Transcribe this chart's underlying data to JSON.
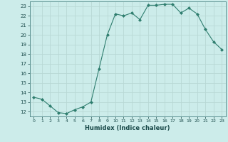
{
  "x": [
    0,
    1,
    2,
    3,
    4,
    5,
    6,
    7,
    8,
    9,
    10,
    11,
    12,
    13,
    14,
    15,
    16,
    17,
    18,
    19,
    20,
    21,
    22,
    23
  ],
  "y": [
    13.5,
    13.3,
    12.6,
    11.9,
    11.8,
    12.2,
    12.5,
    13.0,
    16.5,
    20.0,
    22.2,
    22.0,
    22.3,
    21.6,
    23.1,
    23.1,
    23.2,
    23.2,
    22.3,
    22.8,
    22.2,
    20.6,
    19.3,
    18.5
  ],
  "ylim": [
    11.5,
    23.5
  ],
  "xlim": [
    -0.5,
    23.5
  ],
  "yticks": [
    12,
    13,
    14,
    15,
    16,
    17,
    18,
    19,
    20,
    21,
    22,
    23
  ],
  "xticks": [
    0,
    1,
    2,
    3,
    4,
    5,
    6,
    7,
    8,
    9,
    10,
    11,
    12,
    13,
    14,
    15,
    16,
    17,
    18,
    19,
    20,
    21,
    22,
    23
  ],
  "xlabel": "Humidex (Indice chaleur)",
  "line_color": "#2e7d6e",
  "marker": "D",
  "marker_size": 2,
  "bg_color": "#ccecea",
  "grid_color": "#b8d8d5",
  "spine_color": "#5a9090"
}
